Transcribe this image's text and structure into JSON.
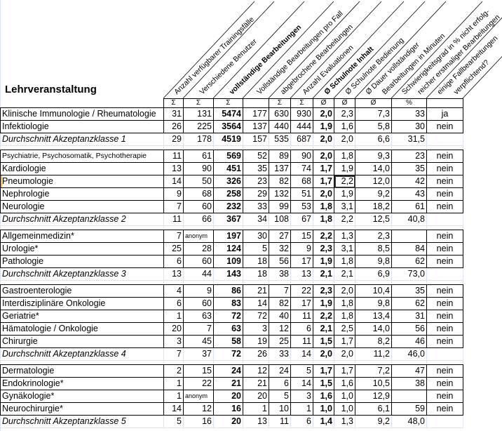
{
  "title": "Lehrveranstaltung",
  "columns": [
    {
      "label": [
        "Anzahl verfügbarer Trainingsfälle"
      ],
      "symbol": "Σ",
      "bold": false
    },
    {
      "label": [
        "Verschiedene  Benutzer"
      ],
      "symbol": "Σ",
      "bold": false
    },
    {
      "label": [
        "vollständige Bearbeitungen"
      ],
      "symbol": "Σ",
      "bold": true
    },
    {
      "label": [
        "Vollständige Bearbeitungen pro Fall"
      ],
      "symbol": "",
      "bold": false
    },
    {
      "label": [
        "abgebrochene Bearbeitungen"
      ],
      "symbol": "Σ",
      "bold": false
    },
    {
      "label": [
        "Anzahl Evaluationen"
      ],
      "symbol": "Σ",
      "bold": false
    },
    {
      "label": [
        "Ø Schulnote Inhalt"
      ],
      "symbol": "Ø",
      "bold": true
    },
    {
      "label": [
        "Ø Schulnote Bedienung"
      ],
      "symbol": "Ø",
      "bold": false
    },
    {
      "label": [
        "Ø Dauer vollständiger",
        "Bearbeitungen in Minuten"
      ],
      "symbol": "Ø",
      "bold": false
    },
    {
      "label": [
        "Schwierigkeitsgrad in % nicht erfolg-",
        "reicher erstmaliger Bearbeitungen"
      ],
      "symbol": "%",
      "bold": false
    },
    {
      "label": [
        "einige Fallbearbeitungen",
        "verpflichtend?"
      ],
      "symbol": "",
      "bold": false
    }
  ],
  "groups": [
    {
      "rows": [
        [
          "Klinische Immunologie / Rheumatologie",
          "31",
          "131",
          "5474",
          "177",
          "630",
          "930",
          "2,0",
          "2,3",
          "7,3",
          "33",
          "ja"
        ],
        [
          "Infektiologie",
          "26",
          "225",
          "3564",
          "137",
          "440",
          "444",
          "1,9",
          "1,6",
          "5,8",
          "30",
          "nein"
        ]
      ],
      "average": [
        "Durchschnitt Akzeptanzklasse 1",
        "29",
        "178",
        "4519",
        "157",
        "535",
        "687",
        "2,0",
        "2,0",
        "6,6",
        "31,5",
        ""
      ]
    },
    {
      "rows": [
        [
          "Psychiatrie, Psychosomatik, Psychotherapie",
          "11",
          "61",
          "569",
          "52",
          "89",
          "90",
          "2,0",
          "1,8",
          "9,3",
          "23",
          "nein"
        ],
        [
          "Kardiologie",
          "13",
          "90",
          "451",
          "35",
          "137",
          "74",
          "1,7",
          "1,9",
          "14,0",
          "35",
          "nein"
        ],
        [
          "Pneumologie",
          "14",
          "50",
          "326",
          "23",
          "82",
          "68",
          "1,7",
          "2,2",
          "12,0",
          "42",
          "nein"
        ],
        [
          "Nephrologie",
          "9",
          "68",
          "258",
          "29",
          "132",
          "51",
          "2,0",
          "1,9",
          "9,2",
          "43",
          "nein"
        ],
        [
          "Neurologie",
          "7",
          "60",
          "232",
          "33",
          "99",
          "53",
          "1,8",
          "3,1",
          "18,2",
          "61",
          "nein"
        ]
      ],
      "average": [
        "Durchschnitt Akzeptanzklasse 2",
        "11",
        "66",
        "367",
        "34",
        "108",
        "67",
        "1,8",
        "2,2",
        "12,5",
        "40,8",
        ""
      ]
    },
    {
      "rows": [
        [
          "Allgemeinmedizin*",
          "7",
          "anonym",
          "197",
          "30",
          "27",
          "15",
          "2,2",
          "1,3",
          "2,3",
          "",
          "nein"
        ],
        [
          "Urologie*",
          "25",
          "28",
          "124",
          "5",
          "32",
          "9",
          "2,3",
          "3,1",
          "8,5",
          "84",
          "nein"
        ],
        [
          "Pathologie",
          "6",
          "60",
          "109",
          "18",
          "56",
          "17",
          "1,9",
          "1,8",
          "9,8",
          "62",
          "nein"
        ]
      ],
      "average": [
        "Durchschnitt Akzeptanzklasse 3",
        "13",
        "44",
        "143",
        "18",
        "38",
        "13",
        "2,1",
        "2,1",
        "6,9",
        "73,0",
        ""
      ]
    },
    {
      "rows": [
        [
          "Gastroenterologie",
          "4",
          "9",
          "86",
          "21",
          "7",
          "22",
          "2,3",
          "2,0",
          "10,4",
          "35",
          "nein"
        ],
        [
          "Interdisziplinäre Onkologie",
          "6",
          "60",
          "83",
          "14",
          "82",
          "17",
          "1,9",
          "1,8",
          "9,8",
          "62",
          "nein"
        ],
        [
          "Geriatrie*",
          "1",
          "63",
          "72",
          "72",
          "40",
          "11",
          "2,2",
          "1,8",
          "13,4",
          "31",
          "nein"
        ],
        [
          "Hämatologie / Onkologie",
          "20",
          "7",
          "63",
          "3",
          "12",
          "6",
          "2,1",
          "2,5",
          "14,0",
          "56",
          "nein"
        ],
        [
          "Chirurgie",
          "3",
          "45",
          "58",
          "19",
          "25",
          "11",
          "1,5",
          "1,7",
          "8,2",
          "46",
          "nein"
        ]
      ],
      "average": [
        "Durchschnitt Akzeptanzklasse 4",
        "7",
        "37",
        "72",
        "26",
        "33",
        "14",
        "2,0",
        "2,0",
        "11,2",
        "46,0",
        ""
      ]
    },
    {
      "rows": [
        [
          "Dermatologie",
          "2",
          "15",
          "24",
          "12",
          "24",
          "5",
          "1,7",
          "1,7",
          "7,2",
          "47",
          "nein"
        ],
        [
          "Endokrinologie*",
          "1",
          "22",
          "21",
          "21",
          "6",
          "14",
          "1,5",
          "1,6",
          "10,5",
          "38",
          "nein"
        ],
        [
          "Gynäkologie*",
          "1",
          "anonym",
          "20",
          "20",
          "5",
          "3",
          "1,6",
          "1,0",
          "12,9",
          "",
          "nein"
        ],
        [
          "Neurochirurgie*",
          "14",
          "12",
          "16",
          "1",
          "10",
          "1",
          "1,0",
          "1,0",
          "6,1",
          "59",
          "nein"
        ]
      ],
      "average": [
        "Durchschnitt Akzeptanzklasse 5",
        "5",
        "16",
        "20",
        "13",
        "11",
        "6",
        "1,4",
        "1,3",
        "9,2",
        "48,0",
        ""
      ]
    }
  ],
  "selected_cell": {
    "row": "Pneumologie",
    "column": "Ø Schulnote Bedienung"
  }
}
